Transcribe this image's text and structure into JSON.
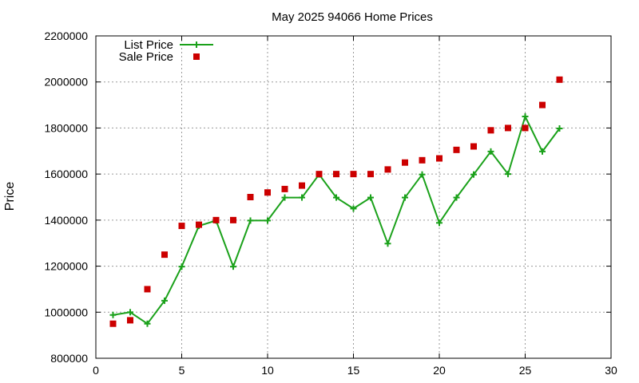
{
  "chart_data": {
    "type": "line",
    "title": "May 2025 94066 Home Prices",
    "xlabel": "",
    "ylabel": "Price",
    "xlim": [
      0,
      30
    ],
    "ylim": [
      800000,
      2200000
    ],
    "xticks": [
      0,
      5,
      10,
      15,
      20,
      25,
      30
    ],
    "yticks": [
      800000,
      1000000,
      1200000,
      1400000,
      1600000,
      1800000,
      2000000,
      2200000
    ],
    "grid": true,
    "legend_position": "top-left",
    "series": [
      {
        "name": "List Price",
        "style": "line+cross",
        "color": "#1aa11a",
        "x": [
          1,
          2,
          3,
          4,
          5,
          6,
          7,
          8,
          9,
          10,
          11,
          12,
          13,
          14,
          15,
          16,
          17,
          18,
          19,
          20,
          21,
          22,
          23,
          24,
          25,
          26,
          27
        ],
        "y": [
          988000,
          1000000,
          950000,
          1050000,
          1198000,
          1375000,
          1398000,
          1198000,
          1398000,
          1398000,
          1498000,
          1498000,
          1598000,
          1498000,
          1450000,
          1498000,
          1298000,
          1498000,
          1598000,
          1388000,
          1498000,
          1598000,
          1698000,
          1600000,
          1850000,
          1698000,
          1798000
        ]
      },
      {
        "name": "Sale Price",
        "style": "square-points",
        "color": "#cc0000",
        "x": [
          1,
          2,
          3,
          4,
          5,
          6,
          7,
          8,
          9,
          10,
          11,
          12,
          13,
          14,
          15,
          16,
          17,
          18,
          19,
          20,
          21,
          22,
          23,
          24,
          25,
          26,
          27
        ],
        "y": [
          950000,
          965000,
          1100000,
          1250000,
          1375000,
          1380000,
          1400000,
          1400000,
          1500000,
          1520000,
          1535000,
          1550000,
          1600000,
          1600000,
          1600000,
          1600000,
          1620000,
          1650000,
          1660000,
          1668000,
          1705000,
          1720000,
          1790000,
          1800000,
          1800000,
          1900000,
          2010000
        ]
      }
    ]
  }
}
